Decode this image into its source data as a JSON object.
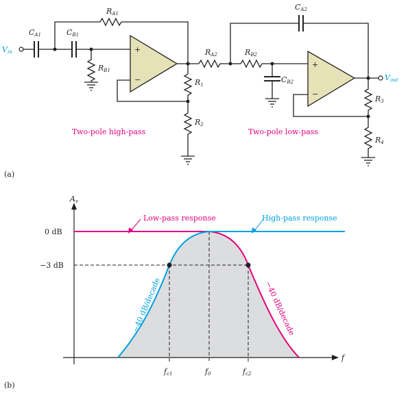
{
  "circuit": {
    "vin": {
      "base": "V",
      "sub": "in"
    },
    "vout": {
      "base": "V",
      "sub": "out"
    },
    "ca1": {
      "base": "C",
      "sub": "A1"
    },
    "cb1": {
      "base": "C",
      "sub": "B1"
    },
    "ra1": {
      "base": "R",
      "sub": "A1"
    },
    "rb1": {
      "base": "R",
      "sub": "B1"
    },
    "r1": {
      "base": "R",
      "sub": "1"
    },
    "r2": {
      "base": "R",
      "sub": "2"
    },
    "ra2": {
      "base": "R",
      "sub": "A2"
    },
    "rb2": {
      "base": "R",
      "sub": "B2"
    },
    "ca2": {
      "base": "C",
      "sub": "A2"
    },
    "cb2": {
      "base": "C",
      "sub": "B2"
    },
    "r3": {
      "base": "R",
      "sub": "3"
    },
    "r4": {
      "base": "R",
      "sub": "4"
    },
    "plus": "+",
    "minus": "−",
    "hp_caption": "Two-pole high-pass",
    "lp_caption": "Two-pole low-pass",
    "label_a": "(a)"
  },
  "response": {
    "label_b": "(b)",
    "y_axis": {
      "base": "A",
      "sub": "v"
    },
    "x_axis": "f",
    "zero_db": "0 dB",
    "minus3_db": "−3 dB",
    "lowpass_label": "Low-pass response",
    "highpass_label": "High-pass response",
    "left_slope": "−40 dB/decade",
    "right_slope": "−40 dB/decade",
    "fc1": {
      "base": "f",
      "sub": "c1"
    },
    "f0": {
      "base": "f",
      "sub": "0"
    },
    "fc2": {
      "base": "f",
      "sub": "c2"
    },
    "colors": {
      "lowpass": "#e4007c",
      "highpass": "#00a0e0",
      "fill": "#dcdddf"
    }
  }
}
